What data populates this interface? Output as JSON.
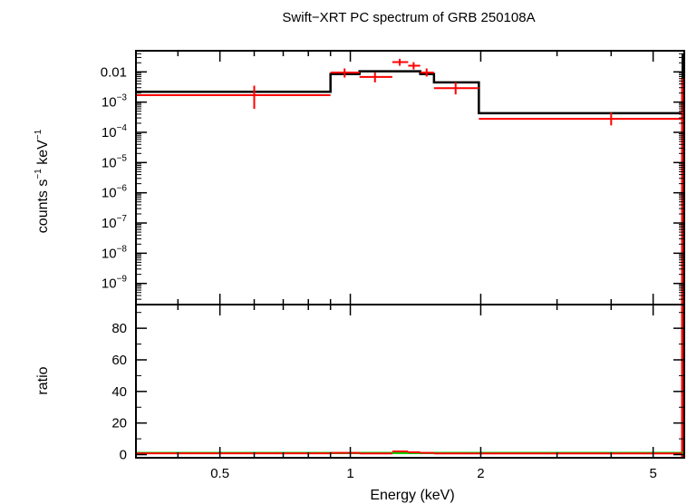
{
  "chart_data": [
    {
      "type": "line",
      "title": "Swift−XRT PC spectrum of GRB 250108A",
      "xlabel": "",
      "ylabel_parts": {
        "counts": "counts s",
        "exp1": "−1",
        "kev": " keV",
        "exp2": "−1"
      },
      "xscale": "log",
      "yscale": "log",
      "xlim": [
        0.32,
        5.9
      ],
      "ylim": [
        2e-10,
        0.05
      ],
      "y_tick_labels": [
        {
          "value": 0.01,
          "mantissa": "0.01",
          "exp": ""
        },
        {
          "value": 0.001,
          "mantissa": "10",
          "exp": "−3"
        },
        {
          "value": 0.0001,
          "mantissa": "10",
          "exp": "−4"
        },
        {
          "value": 1e-05,
          "mantissa": "10",
          "exp": "−5"
        },
        {
          "value": 1e-06,
          "mantissa": "10",
          "exp": "−6"
        },
        {
          "value": 1e-07,
          "mantissa": "10",
          "exp": "−7"
        },
        {
          "value": 1e-08,
          "mantissa": "10",
          "exp": "−8"
        },
        {
          "value": 1e-09,
          "mantissa": "10",
          "exp": "−9"
        }
      ],
      "series": [
        {
          "kind": "data",
          "color": "#ff0000",
          "points": [
            {
              "x": 0.6,
              "xlo": 0.32,
              "xhi": 0.9,
              "y": 0.0017,
              "ylo": 0.0006,
              "yhi": 0.0035
            },
            {
              "x": 0.97,
              "xlo": 0.9,
              "xhi": 1.05,
              "y": 0.0095,
              "ylo": 0.0065,
              "yhi": 0.013
            },
            {
              "x": 1.14,
              "xlo": 1.05,
              "xhi": 1.25,
              "y": 0.0068,
              "ylo": 0.0045,
              "yhi": 0.0095
            },
            {
              "x": 1.3,
              "xlo": 1.25,
              "xhi": 1.36,
              "y": 0.021,
              "ylo": 0.016,
              "yhi": 0.027
            },
            {
              "x": 1.4,
              "xlo": 1.36,
              "xhi": 1.45,
              "y": 0.016,
              "ylo": 0.012,
              "yhi": 0.021
            },
            {
              "x": 1.5,
              "xlo": 1.45,
              "xhi": 1.56,
              "y": 0.0095,
              "ylo": 0.007,
              "yhi": 0.013
            },
            {
              "x": 1.75,
              "xlo": 1.56,
              "xhi": 1.98,
              "y": 0.0029,
              "ylo": 0.0018,
              "yhi": 0.0045
            },
            {
              "x": 4.0,
              "xlo": 1.98,
              "xhi": 5.85,
              "y": 0.00028,
              "ylo": 0.00017,
              "yhi": 0.00045
            }
          ]
        },
        {
          "kind": "model",
          "color": "#000000",
          "bins": [
            {
              "xlo": 0.32,
              "xhi": 0.9,
              "y": 0.0022
            },
            {
              "xlo": 0.9,
              "xhi": 1.05,
              "y": 0.0085
            },
            {
              "xlo": 1.05,
              "xhi": 1.25,
              "y": 0.0105
            },
            {
              "xlo": 1.25,
              "xhi": 1.45,
              "y": 0.0105
            },
            {
              "xlo": 1.45,
              "xhi": 1.56,
              "y": 0.0085
            },
            {
              "xlo": 1.56,
              "xhi": 1.98,
              "y": 0.0045
            },
            {
              "xlo": 1.98,
              "xhi": 5.85,
              "y": 0.00043
            }
          ]
        }
      ]
    },
    {
      "type": "line",
      "xlabel": "Energy (keV)",
      "ylabel": "ratio",
      "xscale": "log",
      "yscale": "linear",
      "xlim": [
        0.32,
        5.9
      ],
      "ylim": [
        -2,
        95
      ],
      "x_ticks": [
        0.5,
        1,
        2,
        5
      ],
      "x_tick_labels": [
        "0.5",
        "1",
        "2",
        "5"
      ],
      "y_ticks": [
        0,
        20,
        40,
        60,
        80
      ],
      "y_tick_labels": [
        "0",
        "20",
        "40",
        "60",
        "80"
      ],
      "reference_line": {
        "y": 1,
        "color": "#00cc00"
      },
      "series": [
        {
          "kind": "ratio",
          "color": "#ff0000",
          "points": [
            {
              "x": 0.6,
              "xlo": 0.32,
              "xhi": 0.9,
              "y": 0.8,
              "ylo": 0.4,
              "yhi": 1.3
            },
            {
              "x": 0.97,
              "xlo": 0.9,
              "xhi": 1.05,
              "y": 1.1,
              "ylo": 0.8,
              "yhi": 1.5
            },
            {
              "x": 1.14,
              "xlo": 1.05,
              "xhi": 1.25,
              "y": 0.7,
              "ylo": 0.4,
              "yhi": 1.0
            },
            {
              "x": 1.3,
              "xlo": 1.25,
              "xhi": 1.36,
              "y": 2.0,
              "ylo": 1.5,
              "yhi": 2.6
            },
            {
              "x": 1.4,
              "xlo": 1.36,
              "xhi": 1.45,
              "y": 1.5,
              "ylo": 1.1,
              "yhi": 2.0
            },
            {
              "x": 1.5,
              "xlo": 1.45,
              "xhi": 1.56,
              "y": 1.1,
              "ylo": 0.8,
              "yhi": 1.5
            },
            {
              "x": 1.75,
              "xlo": 1.56,
              "xhi": 1.98,
              "y": 0.7,
              "ylo": 0.4,
              "yhi": 1.0
            },
            {
              "x": 4.0,
              "xlo": 1.98,
              "xhi": 5.85,
              "y": 0.7,
              "ylo": 0.4,
              "yhi": 1.0
            }
          ]
        }
      ]
    }
  ]
}
